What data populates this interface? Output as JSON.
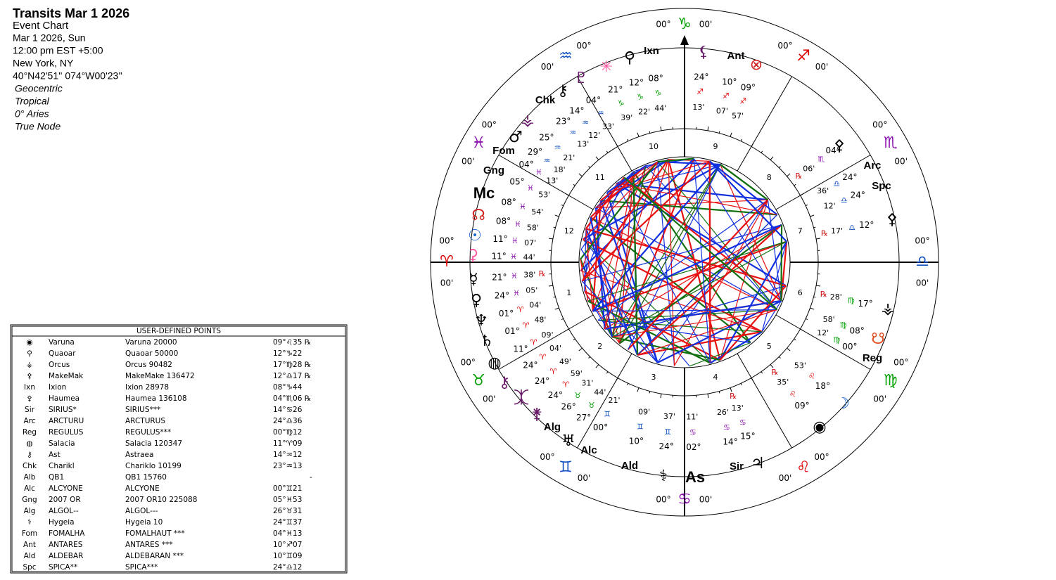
{
  "header": {
    "title": "Transits Mar 1 2026",
    "subtitle": "Event Chart",
    "lines": [
      "Mar 1 2026, Sun",
      "12:00 pm  EST +5:00",
      "New York, NY",
      "40°N42'51'' 074°W00'23''"
    ],
    "settings": [
      "Geocentric",
      "Tropical",
      "0° Aries",
      "True Node"
    ]
  },
  "wheel": {
    "signs": [
      {
        "glyph": "♈",
        "deg": "00°",
        "min": "00'",
        "color": "#e00000"
      },
      {
        "glyph": "♉",
        "deg": "00°",
        "min": "00'",
        "color": "#00a000"
      },
      {
        "glyph": "♊",
        "deg": "00°",
        "min": "00'",
        "color": "#1050c0"
      },
      {
        "glyph": "♋",
        "deg": "00°",
        "min": "00'",
        "color": "#8a10b0"
      },
      {
        "glyph": "♌",
        "deg": "00°",
        "min": "00'",
        "color": "#e00000"
      },
      {
        "glyph": "♍",
        "deg": "00°",
        "min": "00'",
        "color": "#00a000"
      },
      {
        "glyph": "♎",
        "deg": "00°",
        "min": "00'",
        "color": "#1050c0"
      },
      {
        "glyph": "♏",
        "deg": "00°",
        "min": "00'",
        "color": "#8a10b0"
      },
      {
        "glyph": "♐",
        "deg": "00°",
        "min": "00'",
        "color": "#e00000"
      },
      {
        "glyph": "♑",
        "deg": "00°",
        "min": "00'",
        "color": "#00a000"
      },
      {
        "glyph": "♒",
        "deg": "00°",
        "min": "00'",
        "color": "#1050c0"
      },
      {
        "glyph": "♓",
        "deg": "00°",
        "min": "00'",
        "color": "#8a10b0"
      }
    ],
    "house_numbers": [
      "1",
      "2",
      "3",
      "4",
      "5",
      "6",
      "7",
      "8",
      "9",
      "10",
      "11",
      "12"
    ],
    "planets": [
      {
        "glyph": "⚸",
        "color": "#6a1b6a",
        "deg": "24°",
        "sign": "♐",
        "min": "13'"
      },
      {
        "glyph": "Ant",
        "color": "#000000",
        "deg": "10°",
        "sign": "♐",
        "min": "07'"
      },
      {
        "glyph": "⊗",
        "color": "#d02020",
        "deg": "09°",
        "sign": "♐",
        "min": "57'"
      },
      {
        "glyph": "Ixn",
        "color": "#000000",
        "deg": "08°",
        "sign": "♑",
        "min": "44'"
      },
      {
        "glyph": "⚲",
        "color": "#000000",
        "deg": "12°",
        "sign": "♑",
        "min": "22'"
      },
      {
        "glyph": "✳",
        "color": "#ff5aa0",
        "deg": "21°",
        "sign": "♑",
        "min": "39'"
      },
      {
        "glyph": "♇",
        "color": "#6a1b6a",
        "deg": "04°",
        "sign": "♒",
        "min": "33'"
      },
      {
        "glyph": "⚷",
        "color": "#000000",
        "deg": "14°",
        "sign": "♒",
        "min": "12'"
      },
      {
        "glyph": "Chk",
        "color": "#000000",
        "deg": "23°",
        "sign": "♒",
        "min": "13'"
      },
      {
        "glyph": "⚶",
        "color": "#6a1b6a",
        "deg": "25°",
        "sign": "♒",
        "min": "21'"
      },
      {
        "glyph": "♂",
        "color": "#000000",
        "deg": "29°",
        "sign": "♒",
        "min": "18'"
      },
      {
        "glyph": "Fom",
        "color": "#000000",
        "deg": "04°",
        "sign": "♓",
        "min": "13'"
      },
      {
        "glyph": "Gng",
        "color": "#000000",
        "deg": "05°",
        "sign": "♓",
        "min": "53'"
      },
      {
        "glyph": "Mc",
        "color": "#000000",
        "deg": "08°",
        "sign": "♓",
        "min": "54'"
      },
      {
        "glyph": "☊",
        "color": "#d02020",
        "deg": "08°",
        "sign": "♓",
        "min": "58'"
      },
      {
        "glyph": "☉",
        "color": "#1060d0",
        "deg": "11°",
        "sign": "♓",
        "min": "07'"
      },
      {
        "glyph": "⚳",
        "color": "#ff5aa0",
        "deg": "11°",
        "sign": "♓",
        "min": "44'"
      },
      {
        "glyph": "☿",
        "color": "#000000",
        "deg": "21°",
        "sign": "♓",
        "min": "38'",
        "rx": "℞"
      },
      {
        "glyph": "♀",
        "color": "#000000",
        "deg": "24°",
        "sign": "♓",
        "min": "05'"
      },
      {
        "glyph": "♆",
        "color": "#000000",
        "deg": "01°",
        "sign": "♈",
        "min": "04'"
      },
      {
        "glyph": "♄",
        "color": "#000000",
        "deg": "01°",
        "sign": "♈",
        "min": "48'"
      },
      {
        "glyph": "◍",
        "color": "#000000",
        "deg": "11°",
        "sign": "♈",
        "min": "09'"
      },
      {
        "glyph": "⚷",
        "color": "#6a1b6a",
        "deg": "24°",
        "sign": "♈",
        "min": "04'"
      },
      {
        "glyph": "⯰",
        "color": "#6a1b6a",
        "deg": "24°",
        "sign": "♈",
        "min": "49'"
      },
      {
        "glyph": "⚵",
        "color": "#6a1b6a",
        "deg": "24°",
        "sign": "♈",
        "min": "59'"
      },
      {
        "glyph": "Alg",
        "color": "#000000",
        "deg": "26°",
        "sign": "♉",
        "min": "31'"
      },
      {
        "glyph": "♅",
        "color": "#000000",
        "deg": "27°",
        "sign": "♉",
        "min": "44'"
      },
      {
        "glyph": "Alc",
        "color": "#000000",
        "deg": "00°",
        "sign": "♊",
        "min": "21'"
      },
      {
        "glyph": "Ald",
        "color": "#000000",
        "deg": "10°",
        "sign": "♊",
        "min": "09'"
      },
      {
        "glyph": "⚕",
        "color": "#000000",
        "deg": "24°",
        "sign": "♊",
        "min": "37'"
      },
      {
        "glyph": "As",
        "color": "#000000",
        "deg": "02°",
        "sign": "♋",
        "min": "11'"
      },
      {
        "glyph": "Sir",
        "color": "#000000",
        "deg": "14°",
        "sign": "♋",
        "min": "26'"
      },
      {
        "glyph": "♃",
        "color": "#000000",
        "deg": "15°",
        "sign": "♋",
        "min": "13'",
        "rx": "℞"
      },
      {
        "glyph": "◉",
        "color": "#000000",
        "deg": "09°",
        "sign": "♌",
        "min": "35'",
        "rx": "℞"
      },
      {
        "glyph": "☽",
        "color": "#1060d0",
        "deg": "18°",
        "sign": "♌",
        "min": "53'"
      },
      {
        "glyph": "Reg",
        "color": "#000000",
        "deg": "00°",
        "sign": "♍",
        "min": "12'"
      },
      {
        "glyph": "☋",
        "color": "#e05020",
        "deg": "08°",
        "sign": "♍",
        "min": "58'"
      },
      {
        "glyph": "⚶",
        "color": "#000000",
        "deg": "17°",
        "sign": "♍",
        "min": "28'",
        "rx": "℞"
      },
      {
        "glyph": "⚴",
        "color": "#000000",
        "deg": "12°",
        "sign": "♎",
        "min": "17'",
        "rx": "℞"
      },
      {
        "glyph": "Spc",
        "color": "#000000",
        "deg": "24°",
        "sign": "♎",
        "min": "12'"
      },
      {
        "glyph": "Arc",
        "color": "#000000",
        "deg": "24°",
        "sign": "♎",
        "min": "36'"
      },
      {
        "glyph": "⚴",
        "color": "#000000",
        "deg": "04°",
        "sign": "♏",
        "min": "06'",
        "rx": "℞"
      }
    ]
  },
  "table": {
    "title": "USER-DEFINED POINTS",
    "rows": [
      [
        "◉",
        "Varuna",
        "Varuna 20000",
        "09°♌35 ℞"
      ],
      [
        "⚲",
        "Quaoar",
        "Quaoar 50000",
        "12°♑22"
      ],
      [
        "⚶",
        "Orcus",
        "Orcus 90482",
        "17°♍28 ℞"
      ],
      [
        "⚴",
        "MakeMak",
        "MakeMake 136472",
        "12°♎17 ℞"
      ],
      [
        "Ixn",
        "Ixion",
        "Ixion 28978",
        "08°♑44"
      ],
      [
        "⚴",
        "Haumea",
        "Haumea 136108",
        "04°♏06 ℞"
      ],
      [
        "Sir",
        "SIRIUS*",
        "SIRIUS***",
        "14°♋26"
      ],
      [
        "Arc",
        "ARCTURU",
        "ARCTURUS",
        "24°♎36"
      ],
      [
        "Reg",
        "REGULUS",
        "REGULUS***",
        "00°♍12"
      ],
      [
        "◍",
        "Salacia",
        "Salacia 120347",
        "11°♈09"
      ],
      [
        "⚷",
        "Ast",
        "Astraea",
        "14°♒12"
      ],
      [
        "Chk",
        "Charikl",
        "Chariklo 10199",
        "23°♒13"
      ],
      [
        "Alb",
        "QB1",
        "QB1 15760",
        "-"
      ],
      [
        "Alc",
        "ALCYONE",
        "ALCYONE",
        "00°♊21"
      ],
      [
        "Gng",
        "2007 OR",
        "2007 OR10 225088",
        "05°♓53"
      ],
      [
        "Alg",
        "ALGOL--",
        "ALGOL---",
        "26°♉31"
      ],
      [
        "⚕",
        "Hygeia",
        "Hygeia 10",
        "24°♊37"
      ],
      [
        "Fom",
        "FOMALHA",
        "FOMALHAUT ***",
        "04°♓13"
      ],
      [
        "Ant",
        "ANTARES",
        "ANTARES ***",
        "10°♐07"
      ],
      [
        "Ald",
        "ALDEBAR",
        "ALDEBARAN ***",
        "10°♊09"
      ],
      [
        "Spc",
        "SPICA**",
        "SPICA***",
        "24°♎12"
      ]
    ],
    "position_colors": [
      "#d01010",
      "#009000",
      "#009000",
      "#1050c0",
      "#009000",
      "#8a10b0",
      "#8a10b0",
      "#1050c0",
      "#009000",
      "#d01010",
      "#1050c0",
      "#1050c0",
      "#000000",
      "#1050c0",
      "#8a10b0",
      "#009000",
      "#1050c0",
      "#8a10b0",
      "#d01010",
      "#1050c0",
      "#1050c0"
    ]
  }
}
